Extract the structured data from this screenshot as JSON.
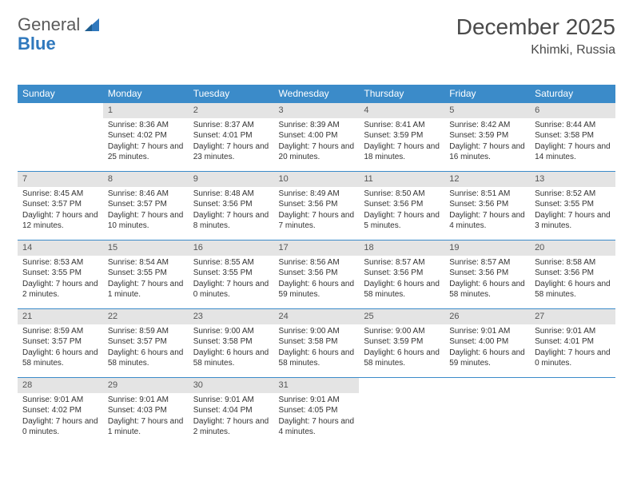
{
  "logo": {
    "word1": "General",
    "word2": "Blue"
  },
  "header": {
    "month_title": "December 2025",
    "location": "Khimki, Russia"
  },
  "colors": {
    "header_bg": "#3b8bc9",
    "header_text": "#ffffff",
    "daynum_bg": "#e4e4e4",
    "row_border": "#3b8bc9",
    "body_text": "#333333",
    "logo_gray": "#5a5a5a",
    "logo_blue": "#2f78bd",
    "page_bg": "#ffffff"
  },
  "daynames": [
    "Sunday",
    "Monday",
    "Tuesday",
    "Wednesday",
    "Thursday",
    "Friday",
    "Saturday"
  ],
  "weeks": [
    [
      {
        "n": "",
        "sr": "",
        "ss": "",
        "dl": ""
      },
      {
        "n": "1",
        "sr": "Sunrise: 8:36 AM",
        "ss": "Sunset: 4:02 PM",
        "dl": "Daylight: 7 hours and 25 minutes."
      },
      {
        "n": "2",
        "sr": "Sunrise: 8:37 AM",
        "ss": "Sunset: 4:01 PM",
        "dl": "Daylight: 7 hours and 23 minutes."
      },
      {
        "n": "3",
        "sr": "Sunrise: 8:39 AM",
        "ss": "Sunset: 4:00 PM",
        "dl": "Daylight: 7 hours and 20 minutes."
      },
      {
        "n": "4",
        "sr": "Sunrise: 8:41 AM",
        "ss": "Sunset: 3:59 PM",
        "dl": "Daylight: 7 hours and 18 minutes."
      },
      {
        "n": "5",
        "sr": "Sunrise: 8:42 AM",
        "ss": "Sunset: 3:59 PM",
        "dl": "Daylight: 7 hours and 16 minutes."
      },
      {
        "n": "6",
        "sr": "Sunrise: 8:44 AM",
        "ss": "Sunset: 3:58 PM",
        "dl": "Daylight: 7 hours and 14 minutes."
      }
    ],
    [
      {
        "n": "7",
        "sr": "Sunrise: 8:45 AM",
        "ss": "Sunset: 3:57 PM",
        "dl": "Daylight: 7 hours and 12 minutes."
      },
      {
        "n": "8",
        "sr": "Sunrise: 8:46 AM",
        "ss": "Sunset: 3:57 PM",
        "dl": "Daylight: 7 hours and 10 minutes."
      },
      {
        "n": "9",
        "sr": "Sunrise: 8:48 AM",
        "ss": "Sunset: 3:56 PM",
        "dl": "Daylight: 7 hours and 8 minutes."
      },
      {
        "n": "10",
        "sr": "Sunrise: 8:49 AM",
        "ss": "Sunset: 3:56 PM",
        "dl": "Daylight: 7 hours and 7 minutes."
      },
      {
        "n": "11",
        "sr": "Sunrise: 8:50 AM",
        "ss": "Sunset: 3:56 PM",
        "dl": "Daylight: 7 hours and 5 minutes."
      },
      {
        "n": "12",
        "sr": "Sunrise: 8:51 AM",
        "ss": "Sunset: 3:56 PM",
        "dl": "Daylight: 7 hours and 4 minutes."
      },
      {
        "n": "13",
        "sr": "Sunrise: 8:52 AM",
        "ss": "Sunset: 3:55 PM",
        "dl": "Daylight: 7 hours and 3 minutes."
      }
    ],
    [
      {
        "n": "14",
        "sr": "Sunrise: 8:53 AM",
        "ss": "Sunset: 3:55 PM",
        "dl": "Daylight: 7 hours and 2 minutes."
      },
      {
        "n": "15",
        "sr": "Sunrise: 8:54 AM",
        "ss": "Sunset: 3:55 PM",
        "dl": "Daylight: 7 hours and 1 minute."
      },
      {
        "n": "16",
        "sr": "Sunrise: 8:55 AM",
        "ss": "Sunset: 3:55 PM",
        "dl": "Daylight: 7 hours and 0 minutes."
      },
      {
        "n": "17",
        "sr": "Sunrise: 8:56 AM",
        "ss": "Sunset: 3:56 PM",
        "dl": "Daylight: 6 hours and 59 minutes."
      },
      {
        "n": "18",
        "sr": "Sunrise: 8:57 AM",
        "ss": "Sunset: 3:56 PM",
        "dl": "Daylight: 6 hours and 58 minutes."
      },
      {
        "n": "19",
        "sr": "Sunrise: 8:57 AM",
        "ss": "Sunset: 3:56 PM",
        "dl": "Daylight: 6 hours and 58 minutes."
      },
      {
        "n": "20",
        "sr": "Sunrise: 8:58 AM",
        "ss": "Sunset: 3:56 PM",
        "dl": "Daylight: 6 hours and 58 minutes."
      }
    ],
    [
      {
        "n": "21",
        "sr": "Sunrise: 8:59 AM",
        "ss": "Sunset: 3:57 PM",
        "dl": "Daylight: 6 hours and 58 minutes."
      },
      {
        "n": "22",
        "sr": "Sunrise: 8:59 AM",
        "ss": "Sunset: 3:57 PM",
        "dl": "Daylight: 6 hours and 58 minutes."
      },
      {
        "n": "23",
        "sr": "Sunrise: 9:00 AM",
        "ss": "Sunset: 3:58 PM",
        "dl": "Daylight: 6 hours and 58 minutes."
      },
      {
        "n": "24",
        "sr": "Sunrise: 9:00 AM",
        "ss": "Sunset: 3:58 PM",
        "dl": "Daylight: 6 hours and 58 minutes."
      },
      {
        "n": "25",
        "sr": "Sunrise: 9:00 AM",
        "ss": "Sunset: 3:59 PM",
        "dl": "Daylight: 6 hours and 58 minutes."
      },
      {
        "n": "26",
        "sr": "Sunrise: 9:01 AM",
        "ss": "Sunset: 4:00 PM",
        "dl": "Daylight: 6 hours and 59 minutes."
      },
      {
        "n": "27",
        "sr": "Sunrise: 9:01 AM",
        "ss": "Sunset: 4:01 PM",
        "dl": "Daylight: 7 hours and 0 minutes."
      }
    ],
    [
      {
        "n": "28",
        "sr": "Sunrise: 9:01 AM",
        "ss": "Sunset: 4:02 PM",
        "dl": "Daylight: 7 hours and 0 minutes."
      },
      {
        "n": "29",
        "sr": "Sunrise: 9:01 AM",
        "ss": "Sunset: 4:03 PM",
        "dl": "Daylight: 7 hours and 1 minute."
      },
      {
        "n": "30",
        "sr": "Sunrise: 9:01 AM",
        "ss": "Sunset: 4:04 PM",
        "dl": "Daylight: 7 hours and 2 minutes."
      },
      {
        "n": "31",
        "sr": "Sunrise: 9:01 AM",
        "ss": "Sunset: 4:05 PM",
        "dl": "Daylight: 7 hours and 4 minutes."
      },
      {
        "n": "",
        "sr": "",
        "ss": "",
        "dl": ""
      },
      {
        "n": "",
        "sr": "",
        "ss": "",
        "dl": ""
      },
      {
        "n": "",
        "sr": "",
        "ss": "",
        "dl": ""
      }
    ]
  ]
}
